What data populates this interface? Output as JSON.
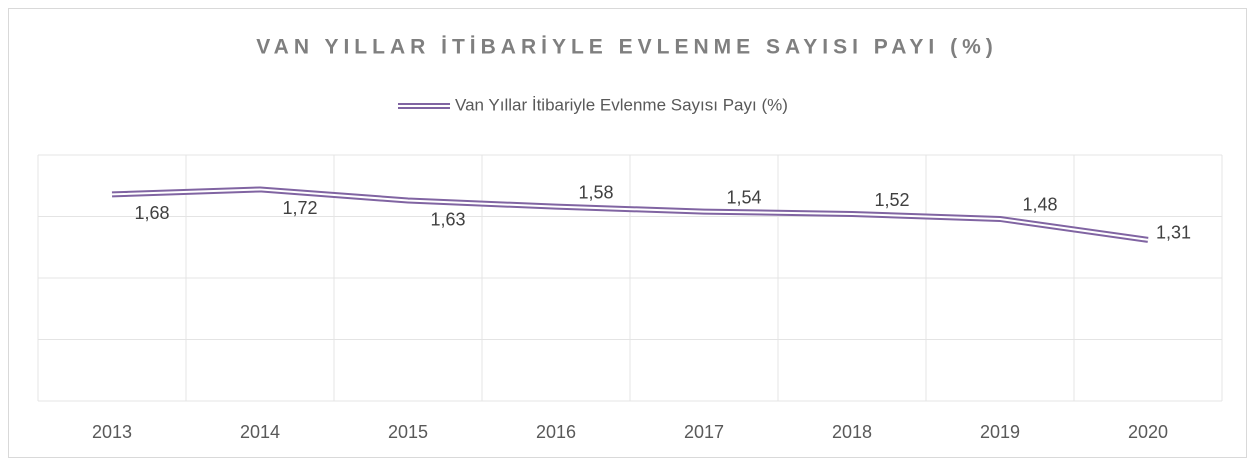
{
  "chart_data": {
    "type": "line",
    "title": "VAN YILLAR İTİBARİYLE EVLENME SAYISI PAYI (%)",
    "categories": [
      "2013",
      "2014",
      "2015",
      "2016",
      "2017",
      "2018",
      "2019",
      "2020"
    ],
    "series": [
      {
        "name": "Van Yıllar İtibariyle Evlenme Sayısı Payı (%)",
        "color": "#8064a2",
        "values": [
          1.68,
          1.72,
          1.63,
          1.58,
          1.54,
          1.52,
          1.48,
          1.31
        ],
        "value_labels": [
          "1,68",
          "1,72",
          "1,63",
          "1,58",
          "1,54",
          "1,52",
          "1,48",
          "1,31"
        ]
      }
    ],
    "ylim": [
      0,
      2
    ],
    "yticks": [
      0,
      0.5,
      1,
      1.5,
      2
    ],
    "grid": true,
    "legend": "top"
  }
}
